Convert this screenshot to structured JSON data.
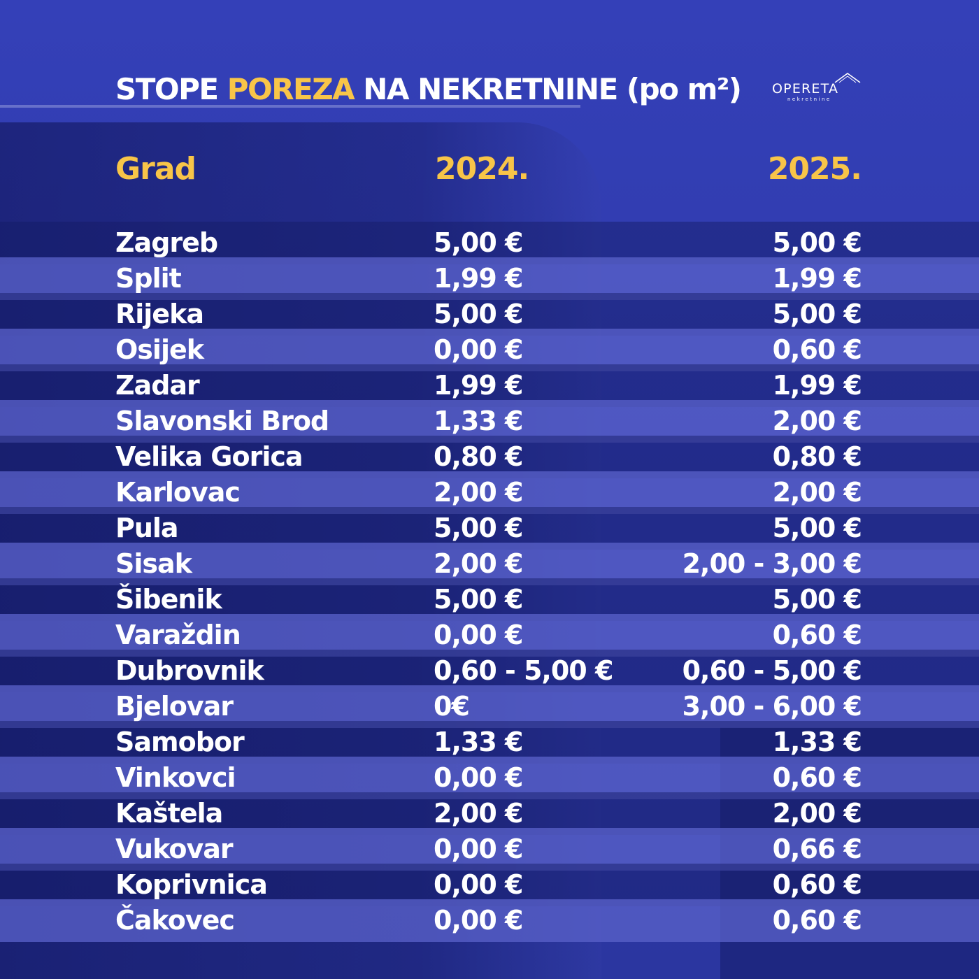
{
  "header": {
    "title_part1": "STOPE ",
    "title_highlight": "POREZA",
    "title_part2": " NA NEKRETNINE (po m²)"
  },
  "logo": {
    "name": "OPERETA",
    "tagline": "nekretnine"
  },
  "colors": {
    "accent": "#f8c548",
    "background": "#3440b8",
    "text": "#ffffff"
  },
  "table": {
    "headers": {
      "city": "Grad",
      "y2024": "2024.",
      "y2025": "2025."
    },
    "rows": [
      {
        "city": "Zagreb",
        "y2024": "5,00 €",
        "y2025": "5,00 €"
      },
      {
        "city": "Split",
        "y2024": "1,99 €",
        "y2025": "1,99 €"
      },
      {
        "city": "Rijeka",
        "y2024": "5,00 €",
        "y2025": "5,00 €"
      },
      {
        "city": "Osijek",
        "y2024": "0,00 €",
        "y2025": "0,60 €"
      },
      {
        "city": "Zadar",
        "y2024": "1,99 €",
        "y2025": "1,99 €"
      },
      {
        "city": "Slavonski Brod",
        "y2024": "1,33 €",
        "y2025": "2,00 €"
      },
      {
        "city": "Velika Gorica",
        "y2024": "0,80 €",
        "y2025": "0,80 €"
      },
      {
        "city": "Karlovac",
        "y2024": "2,00 €",
        "y2025": "2,00 €"
      },
      {
        "city": "Pula",
        "y2024": "5,00 €",
        "y2025": "5,00 €"
      },
      {
        "city": "Sisak",
        "y2024": "2,00 €",
        "y2025": "2,00 - 3,00 €"
      },
      {
        "city": "Šibenik",
        "y2024": "5,00 €",
        "y2025": "5,00 €"
      },
      {
        "city": "Varaždin",
        "y2024": "0,00 €",
        "y2025": "0,60 €"
      },
      {
        "city": "Dubrovnik",
        "y2024": "0,60 - 5,00 €",
        "y2025": "0,60 - 5,00 €"
      },
      {
        "city": "Bjelovar",
        "y2024": "0€",
        "y2025": "3,00 - 6,00 €"
      },
      {
        "city": "Samobor",
        "y2024": "1,33 €",
        "y2025": "1,33 €"
      },
      {
        "city": "Vinkovci",
        "y2024": "0,00 €",
        "y2025": "0,60 €"
      },
      {
        "city": "Kaštela",
        "y2024": "2,00 €",
        "y2025": "2,00 €"
      },
      {
        "city": "Vukovar",
        "y2024": "0,00 €",
        "y2025": "0,66 €"
      },
      {
        "city": "Koprivnica",
        "y2024": "0,00 €",
        "y2025": "0,60 €"
      },
      {
        "city": "Čakovec",
        "y2024": "0,00 €",
        "y2025": "0,60 €"
      }
    ]
  }
}
